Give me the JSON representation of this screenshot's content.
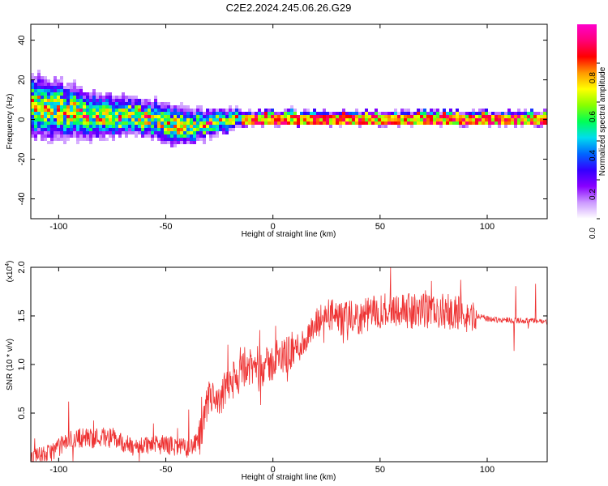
{
  "figure": {
    "title": "C2E2.2024.245.06.26.G29"
  },
  "chart_data": [
    {
      "type": "heatmap",
      "xlabel": "Height of straight line (km)",
      "ylabel": "Frequency (Hz)",
      "xlim": [
        -113,
        128
      ],
      "ylim": [
        -50,
        48
      ],
      "xticks": [
        -100,
        -50,
        0,
        50,
        100
      ],
      "yticks": [
        -40,
        -20,
        0,
        20,
        40
      ],
      "colorbar": {
        "label": "Normalized spectral amplitude",
        "range": [
          0,
          1
        ],
        "ticks": [
          "0.0",
          "0.2",
          "0.4",
          "0.6",
          "0.8"
        ],
        "colors": [
          "#ffffff",
          "#cc99ff",
          "#8800ff",
          "#3300ff",
          "#0066ff",
          "#00ddee",
          "#00ff55",
          "#88ff00",
          "#ffff00",
          "#ff9900",
          "#ff0000",
          "#ff0077",
          "#ff00cc"
        ]
      },
      "spread_profile": [
        {
          "x": -113,
          "center_hz": 6,
          "halfwidth_hz": 14
        },
        {
          "x": -100,
          "center_hz": 5,
          "halfwidth_hz": 13
        },
        {
          "x": -85,
          "center_hz": 2,
          "halfwidth_hz": 10
        },
        {
          "x": -60,
          "center_hz": 1,
          "halfwidth_hz": 8
        },
        {
          "x": -45,
          "center_hz": -3,
          "halfwidth_hz": 9
        },
        {
          "x": -35,
          "center_hz": -3,
          "halfwidth_hz": 7
        },
        {
          "x": -20,
          "center_hz": 0,
          "halfwidth_hz": 5
        },
        {
          "x": -10,
          "center_hz": 1,
          "halfwidth_hz": 3
        },
        {
          "x": 50,
          "center_hz": 1,
          "halfwidth_hz": 3
        },
        {
          "x": 128,
          "center_hz": 1,
          "halfwidth_hz": 3
        }
      ],
      "peak_line": {
        "x_range": [
          -15,
          128
        ],
        "freq_hz": 0,
        "level": 0.95
      }
    },
    {
      "type": "line",
      "xlabel": "Height of straight line (km)",
      "ylabel": "SNR (10 * v/v)",
      "scale_label": "(x10",
      "scale_exp": "4",
      "xlim": [
        -113,
        128
      ],
      "ylim": [
        0,
        2.0
      ],
      "xticks": [
        -100,
        -50,
        0,
        50,
        100
      ],
      "yticks": [
        "0.5",
        "1.0",
        "1.5",
        "2.0"
      ],
      "color": "#ee3333",
      "series": [
        {
          "values": [
            [
              -113,
              0.04
            ],
            [
              -105,
              0.08
            ],
            [
              -100,
              0.15
            ],
            [
              -95,
              0.22
            ],
            [
              -90,
              0.25
            ],
            [
              -85,
              0.24
            ],
            [
              -80,
              0.26
            ],
            [
              -75,
              0.24
            ],
            [
              -70,
              0.2
            ],
            [
              -65,
              0.14
            ],
            [
              -60,
              0.18
            ],
            [
              -55,
              0.17
            ],
            [
              -50,
              0.18
            ],
            [
              -45,
              0.15
            ],
            [
              -40,
              0.14
            ],
            [
              -36,
              0.18
            ],
            [
              -33,
              0.28
            ],
            [
              -31,
              0.55
            ],
            [
              -29,
              0.7
            ],
            [
              -27,
              0.6
            ],
            [
              -25,
              0.55
            ],
            [
              -22,
              0.78
            ],
            [
              -20,
              0.75
            ],
            [
              -18,
              0.85
            ],
            [
              -15,
              0.9
            ],
            [
              -12,
              0.97
            ],
            [
              -10,
              0.95
            ],
            [
              -7,
              1.0
            ],
            [
              -5,
              1.02
            ],
            [
              -3,
              0.98
            ],
            [
              0,
              1.02
            ],
            [
              3,
              1.05
            ],
            [
              6,
              1.1
            ],
            [
              10,
              1.15
            ],
            [
              14,
              1.22
            ],
            [
              18,
              1.32
            ],
            [
              21,
              1.42
            ],
            [
              24,
              1.5
            ],
            [
              27,
              1.52
            ],
            [
              30,
              1.45
            ],
            [
              33,
              1.46
            ],
            [
              36,
              1.48
            ],
            [
              40,
              1.47
            ],
            [
              45,
              1.52
            ],
            [
              50,
              1.55
            ],
            [
              55,
              1.58
            ],
            [
              60,
              1.57
            ],
            [
              65,
              1.54
            ],
            [
              70,
              1.56
            ],
            [
              75,
              1.52
            ],
            [
              80,
              1.55
            ],
            [
              85,
              1.53
            ],
            [
              90,
              1.52
            ],
            [
              93,
              1.48
            ],
            [
              96,
              1.5
            ],
            [
              100,
              1.47
            ],
            [
              105,
              1.46
            ],
            [
              110,
              1.46
            ],
            [
              115,
              1.45
            ],
            [
              120,
              1.45
            ],
            [
              128,
              1.44
            ]
          ]
        }
      ]
    }
  ]
}
